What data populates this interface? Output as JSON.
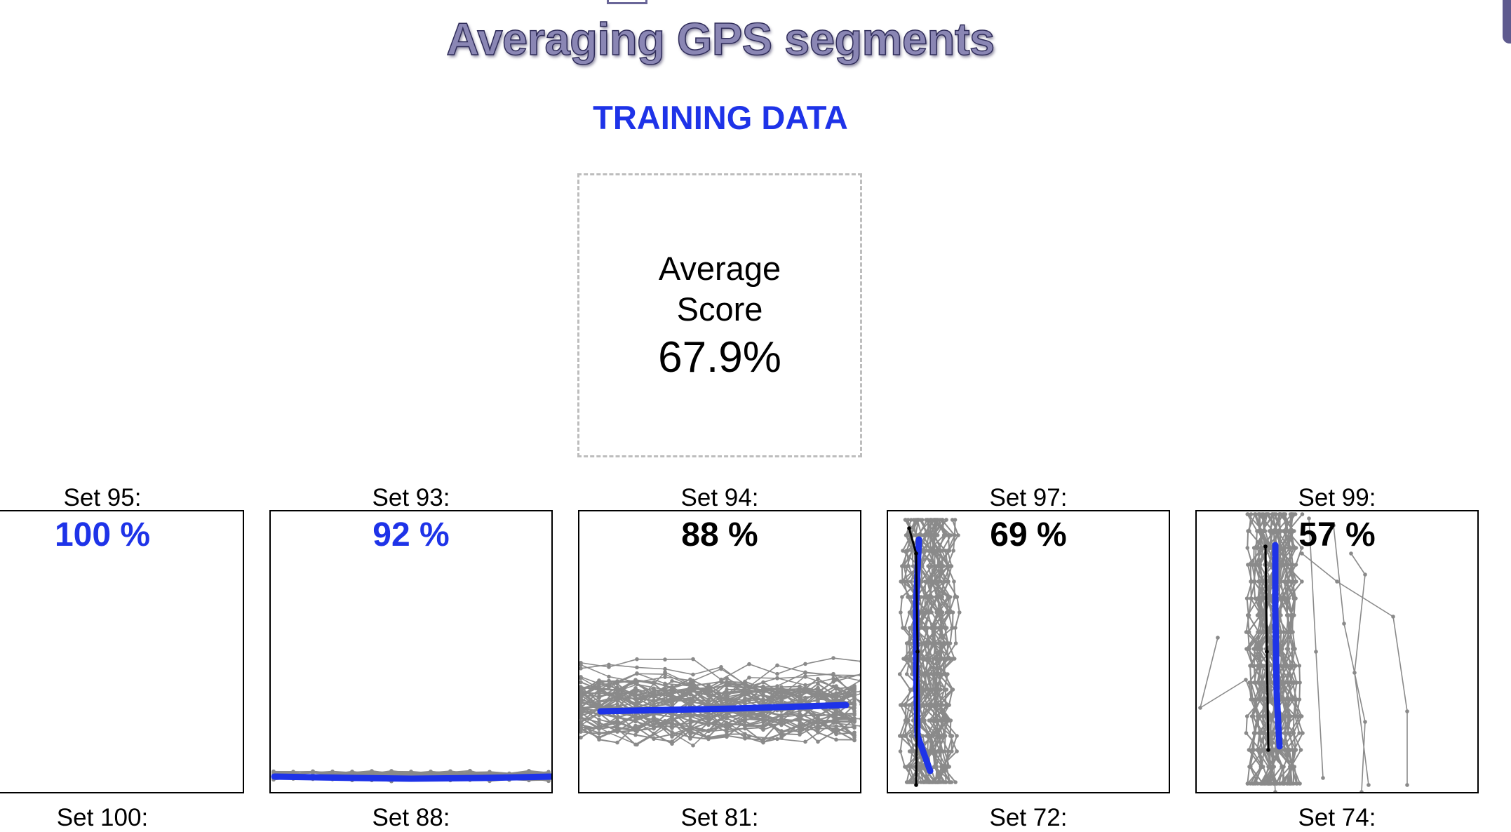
{
  "header": {
    "title": "Averaging GPS segments",
    "section": "TRAINING DATA"
  },
  "summary": {
    "label": "Average Score",
    "value": "67.9%"
  },
  "colors": {
    "accent": "#1e33e8",
    "track": "#8a8a8a",
    "average_line": "#1e33e8",
    "title_fill": "#8a86b4"
  },
  "sets": [
    {
      "label": "Set 95:",
      "score": "100 %",
      "highlight": true
    },
    {
      "label": "Set 93:",
      "score": "92 %",
      "highlight": true
    },
    {
      "label": "Set 94:",
      "score": "88 %",
      "highlight": false
    },
    {
      "label": "Set 97:",
      "score": "69 %",
      "highlight": false
    },
    {
      "label": "Set 99:",
      "score": "57 %",
      "highlight": false
    }
  ],
  "next_row": [
    {
      "label": "Set 100:"
    },
    {
      "label": "Set 88:"
    },
    {
      "label": "Set 81:"
    },
    {
      "label": "Set 72:"
    },
    {
      "label": "Set 74:"
    }
  ]
}
